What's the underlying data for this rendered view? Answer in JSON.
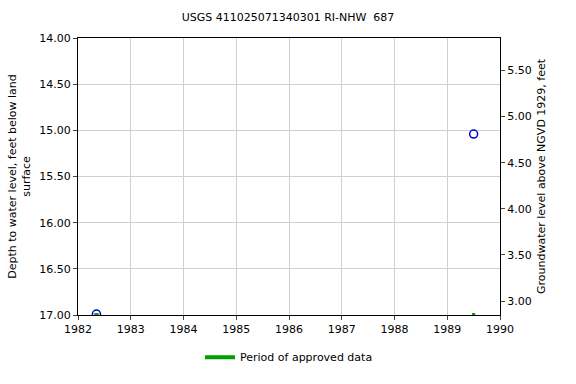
{
  "chart_data": {
    "type": "scatter",
    "title": "USGS 411025071340301 RI-NHW  687",
    "y_label": "Depth to water level, feet below land\nsurface",
    "y2_label": "Groundwater level above NGVD 1929, feet",
    "xlim": [
      1982,
      1990
    ],
    "xticks": [
      1982,
      1983,
      1984,
      1985,
      1986,
      1987,
      1988,
      1989,
      1990
    ],
    "ylim": [
      17,
      14
    ],
    "yticks": [
      {
        "value": 14,
        "label": "14.00"
      },
      {
        "value": 14.5,
        "label": "14.50"
      },
      {
        "value": 15,
        "label": "15.00"
      },
      {
        "value": 15.5,
        "label": "15.50"
      },
      {
        "value": 16,
        "label": "16.00"
      },
      {
        "value": 16.5,
        "label": "16.50"
      },
      {
        "value": 17,
        "label": "17.00"
      }
    ],
    "y2lim": [
      2.85,
      5.85
    ],
    "y2ticks": [
      {
        "value": 3,
        "label": "3.00"
      },
      {
        "value": 3.5,
        "label": "3.50"
      },
      {
        "value": 4,
        "label": "4.00"
      },
      {
        "value": 4.5,
        "label": "4.50"
      },
      {
        "value": 5,
        "label": "5.00"
      },
      {
        "value": 5.5,
        "label": "5.50"
      }
    ],
    "grid": true,
    "legend": "bottom",
    "series": [
      {
        "type": "scatter",
        "color": "#0000cc",
        "marker": "circle-open",
        "x": [
          1982.35,
          1989.5
        ],
        "values": [
          16.99,
          15.04
        ]
      },
      {
        "name": "Period of approved data",
        "type": "line",
        "color": "#00a000",
        "line_style": "solid",
        "x": [
          1982.31,
          1982.39,
          1986,
          1989.47,
          1989.53
        ],
        "values": [
          17,
          17,
          null,
          17,
          17
        ]
      }
    ]
  }
}
